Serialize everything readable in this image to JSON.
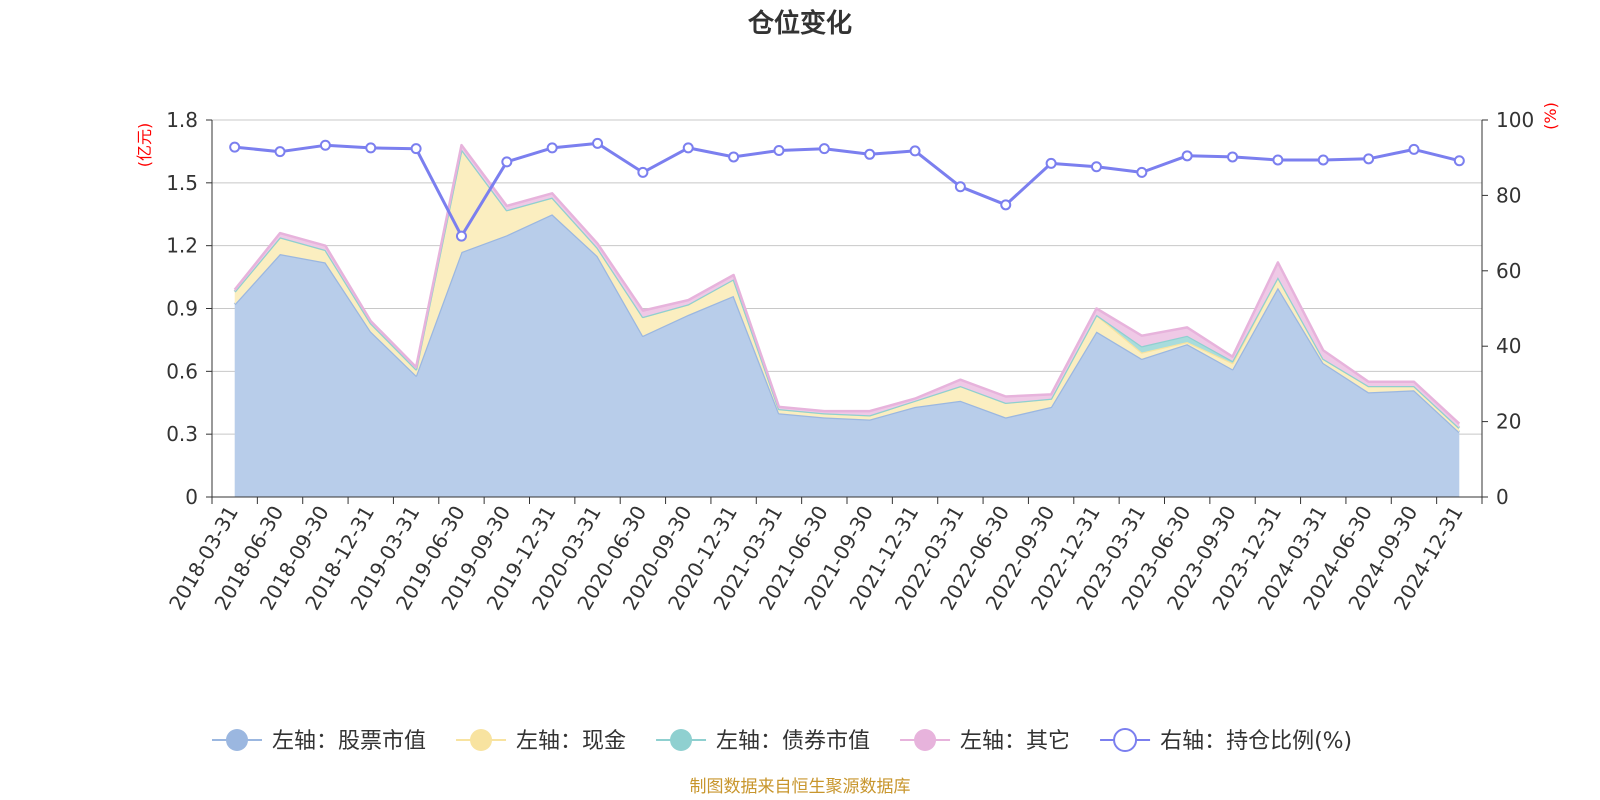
{
  "chart_data": {
    "type": "area",
    "title": "仓位变化",
    "left_axis_unit": "(亿元)",
    "right_axis_unit": "(%)",
    "source": "制图数据来自恒生聚源数据库",
    "categories": [
      "2018-03-31",
      "2018-06-30",
      "2018-09-30",
      "2018-12-31",
      "2019-03-31",
      "2019-06-30",
      "2019-09-30",
      "2019-12-31",
      "2020-03-31",
      "2020-06-30",
      "2020-09-30",
      "2020-12-31",
      "2021-03-31",
      "2021-06-30",
      "2021-09-30",
      "2021-12-31",
      "2022-03-31",
      "2022-06-30",
      "2022-09-30",
      "2022-12-31",
      "2023-03-31",
      "2023-06-30",
      "2023-09-30",
      "2023-12-31",
      "2024-03-31",
      "2024-06-30",
      "2024-09-30",
      "2024-12-31"
    ],
    "left_ylim": [
      0,
      1.8
    ],
    "left_ticks": [
      "0",
      "0.3",
      "0.6",
      "0.9",
      "1.2",
      "1.5",
      "1.8"
    ],
    "right_ylim": [
      0,
      100
    ],
    "right_ticks": [
      "0",
      "20",
      "40",
      "60",
      "80",
      "100"
    ],
    "grid": true,
    "legend_position": "bottom",
    "series": [
      {
        "name": "左轴：股票市值",
        "axis": "left",
        "stacked": true,
        "color": "#9bb7e0",
        "fill": "#b8cdea",
        "values": [
          0.92,
          1.16,
          1.12,
          0.79,
          0.58,
          1.17,
          1.25,
          1.35,
          1.15,
          0.77,
          0.87,
          0.96,
          0.4,
          0.38,
          0.37,
          0.43,
          0.46,
          0.38,
          0.43,
          0.79,
          0.66,
          0.73,
          0.61,
          1.0,
          0.64,
          0.5,
          0.51,
          0.31
        ]
      },
      {
        "name": "左轴：现金",
        "axis": "left",
        "stacked": true,
        "color": "#f8e3a0",
        "fill": "#fbeec0",
        "values": [
          0.06,
          0.08,
          0.06,
          0.04,
          0.03,
          0.49,
          0.12,
          0.08,
          0.04,
          0.09,
          0.05,
          0.08,
          0.02,
          0.02,
          0.02,
          0.03,
          0.07,
          0.07,
          0.04,
          0.08,
          0.03,
          0.01,
          0.03,
          0.05,
          0.02,
          0.03,
          0.02,
          0.02
        ]
      },
      {
        "name": "左轴：债券市值",
        "axis": "left",
        "stacked": true,
        "color": "#8fd0d0",
        "fill": "#a8dcdc",
        "values": [
          0,
          0,
          0,
          0,
          0,
          0,
          0,
          0,
          0,
          0,
          0,
          0,
          0,
          0,
          0,
          0,
          0,
          0,
          0,
          0,
          0.03,
          0.03,
          0.01,
          0,
          0,
          0,
          0,
          0
        ]
      },
      {
        "name": "左轴：其它",
        "axis": "left",
        "stacked": true,
        "color": "#e7b3dc",
        "fill": "#efc9e6",
        "values": [
          0.01,
          0.02,
          0.02,
          0.01,
          0.01,
          0.02,
          0.02,
          0.02,
          0.02,
          0.03,
          0.02,
          0.02,
          0.01,
          0.01,
          0.02,
          0.01,
          0.03,
          0.03,
          0.02,
          0.03,
          0.05,
          0.04,
          0.02,
          0.07,
          0.04,
          0.02,
          0.02,
          0.02
        ]
      },
      {
        "name": "右轴：持仓比例(%)",
        "axis": "right",
        "type": "line",
        "color": "#7b7fef",
        "values": [
          92.8,
          91.6,
          93.3,
          92.6,
          92.4,
          69.2,
          88.9,
          92.6,
          93.8,
          86.1,
          92.6,
          90.2,
          91.9,
          92.4,
          90.9,
          91.8,
          82.3,
          77.5,
          88.5,
          87.6,
          86.1,
          90.5,
          90.2,
          89.4,
          89.4,
          89.7,
          92.2,
          89.2
        ]
      }
    ]
  }
}
